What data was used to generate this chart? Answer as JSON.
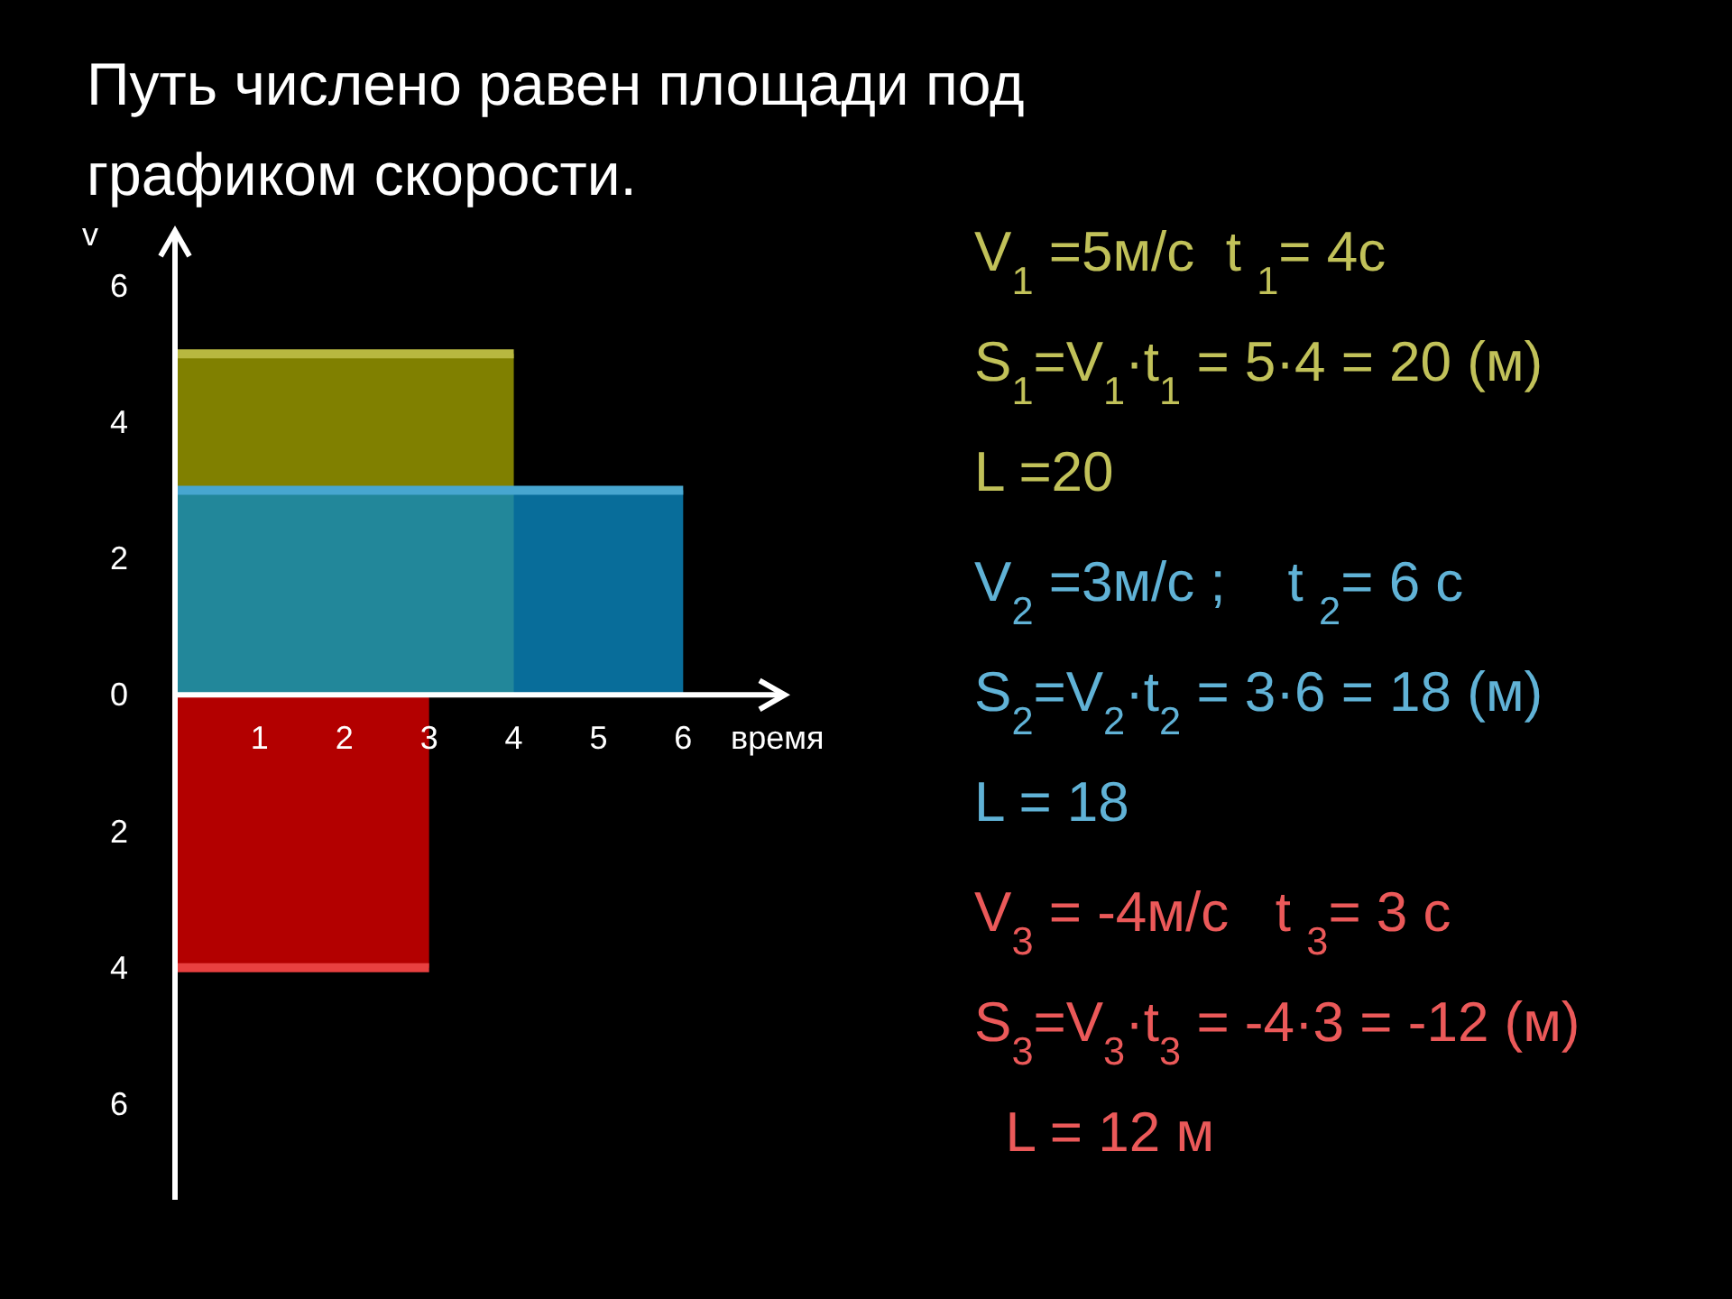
{
  "chart_data": {
    "type": "area",
    "title": "Путь числено равен площади под графиком скорости.",
    "xlabel": "время",
    "ylabel": "v",
    "xlim": [
      0,
      7.2
    ],
    "ylim": [
      -7.4,
      6.8
    ],
    "xticks": [
      1,
      2,
      3,
      4,
      5,
      6
    ],
    "yticks": [
      {
        "value": -6,
        "label": "6"
      },
      {
        "value": -4,
        "label": "4"
      },
      {
        "value": -2,
        "label": "2"
      },
      0,
      2,
      4,
      6
    ],
    "series": [
      {
        "type": "area",
        "color": "#a0a000",
        "x": [
          0,
          4
        ],
        "values": [
          5,
          5
        ]
      },
      {
        "type": "area",
        "color": "#0a88c0",
        "x": [
          0,
          6
        ],
        "values": [
          3,
          3
        ]
      },
      {
        "type": "area",
        "color": "#e00000",
        "x": [
          0,
          3
        ],
        "values": [
          -4,
          -4
        ]
      }
    ],
    "annotations": [
      "V$_{1}$ =5м/с  t $_{1}$= 4с",
      "S$_{1}$=V$_{1}$·t$_{1}$ = 5·4 = 20 (м)",
      "L =20",
      "V$_{2}$ =3м/с ;    t $_{2}$= 6 с",
      "S$_{2}$=V$_{2}$·t$_{2}$ = 3·6 = 18 (м)",
      "L = 18",
      "V$_{3}$ = -4м/с   t $_{3}$= 3 с",
      "S$_{3}$=V$_{3}$·t$_{3}$ = -4·3 = -12 (м)",
      "  L = 12 м"
    ]
  }
}
